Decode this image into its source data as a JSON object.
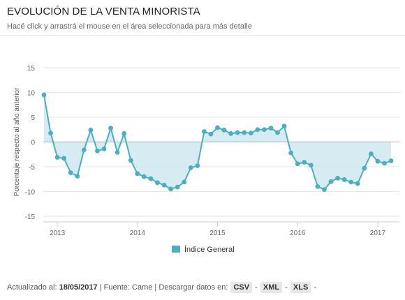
{
  "header": {
    "title": "EVOLUCIÓN DE LA VENTA MINORISTA",
    "subtitle": "Hacé click y arrastrá el mouse en el área seleccionada para más detalle"
  },
  "colors": {
    "line": "#4bafc4",
    "fill": "#cfe9f0",
    "grid": "#e6e6e6",
    "zero_line": "#aaaaaa"
  },
  "chart_data": {
    "type": "area",
    "ylabel": "Porcentaje respecto al año anterior",
    "ylim": [
      -15,
      15
    ],
    "yticks": [
      15,
      10,
      5,
      0,
      -5,
      -10,
      -15
    ],
    "xlim": [
      "2012-11",
      "2017-04"
    ],
    "xticks": [
      {
        "label": "2013",
        "date": "2013-01"
      },
      {
        "label": "2014",
        "date": "2014-01"
      },
      {
        "label": "2015",
        "date": "2015-01"
      },
      {
        "label": "2016",
        "date": "2016-01"
      },
      {
        "label": "2017",
        "date": "2017-01"
      }
    ],
    "grid": true,
    "legend_position": "bottom-center",
    "series": [
      {
        "name": "Índice General",
        "points": [
          {
            "x": "2012-11",
            "y": 9.5
          },
          {
            "x": "2012-12",
            "y": 1.8
          },
          {
            "x": "2013-01",
            "y": -3.1
          },
          {
            "x": "2013-02",
            "y": -3.3
          },
          {
            "x": "2013-03",
            "y": -6.2
          },
          {
            "x": "2013-04",
            "y": -6.9
          },
          {
            "x": "2013-05",
            "y": -1.6
          },
          {
            "x": "2013-06",
            "y": 2.4
          },
          {
            "x": "2013-07",
            "y": -1.8
          },
          {
            "x": "2013-08",
            "y": -1.4
          },
          {
            "x": "2013-09",
            "y": 2.8
          },
          {
            "x": "2013-10",
            "y": -2.1
          },
          {
            "x": "2013-11",
            "y": 1.7
          },
          {
            "x": "2013-12",
            "y": -3.7
          },
          {
            "x": "2014-01",
            "y": -6.4
          },
          {
            "x": "2014-02",
            "y": -7.0
          },
          {
            "x": "2014-03",
            "y": -7.4
          },
          {
            "x": "2014-04",
            "y": -8.2
          },
          {
            "x": "2014-05",
            "y": -8.7
          },
          {
            "x": "2014-06",
            "y": -9.5
          },
          {
            "x": "2014-07",
            "y": -9.1
          },
          {
            "x": "2014-08",
            "y": -8.1
          },
          {
            "x": "2014-09",
            "y": -5.2
          },
          {
            "x": "2014-10",
            "y": -4.8
          },
          {
            "x": "2014-11",
            "y": 2.1
          },
          {
            "x": "2014-12",
            "y": 1.6
          },
          {
            "x": "2015-01",
            "y": 2.9
          },
          {
            "x": "2015-02",
            "y": 2.4
          },
          {
            "x": "2015-03",
            "y": 1.7
          },
          {
            "x": "2015-04",
            "y": 1.9
          },
          {
            "x": "2015-05",
            "y": 1.9
          },
          {
            "x": "2015-06",
            "y": 1.8
          },
          {
            "x": "2015-07",
            "y": 2.5
          },
          {
            "x": "2015-08",
            "y": 2.5
          },
          {
            "x": "2015-09",
            "y": 2.8
          },
          {
            "x": "2015-10",
            "y": 1.9
          },
          {
            "x": "2015-11",
            "y": 3.2
          },
          {
            "x": "2015-12",
            "y": -2.2
          },
          {
            "x": "2016-01",
            "y": -4.4
          },
          {
            "x": "2016-02",
            "y": -4.1
          },
          {
            "x": "2016-03",
            "y": -4.7
          },
          {
            "x": "2016-04",
            "y": -9.0
          },
          {
            "x": "2016-05",
            "y": -9.6
          },
          {
            "x": "2016-06",
            "y": -8.0
          },
          {
            "x": "2016-07",
            "y": -7.3
          },
          {
            "x": "2016-08",
            "y": -7.6
          },
          {
            "x": "2016-09",
            "y": -8.1
          },
          {
            "x": "2016-10",
            "y": -8.4
          },
          {
            "x": "2016-11",
            "y": -5.3
          },
          {
            "x": "2016-12",
            "y": -2.4
          },
          {
            "x": "2017-01",
            "y": -3.9
          },
          {
            "x": "2017-02",
            "y": -4.3
          },
          {
            "x": "2017-03",
            "y": -3.8
          }
        ]
      }
    ]
  },
  "footer": {
    "updated_label": "Actualizado al:",
    "updated_date": "18/05/2017",
    "source_text": "| Fuente: Came | Descargar datos en:",
    "downloads": [
      "CSV",
      "XML",
      "XLS"
    ],
    "separator": "-"
  }
}
